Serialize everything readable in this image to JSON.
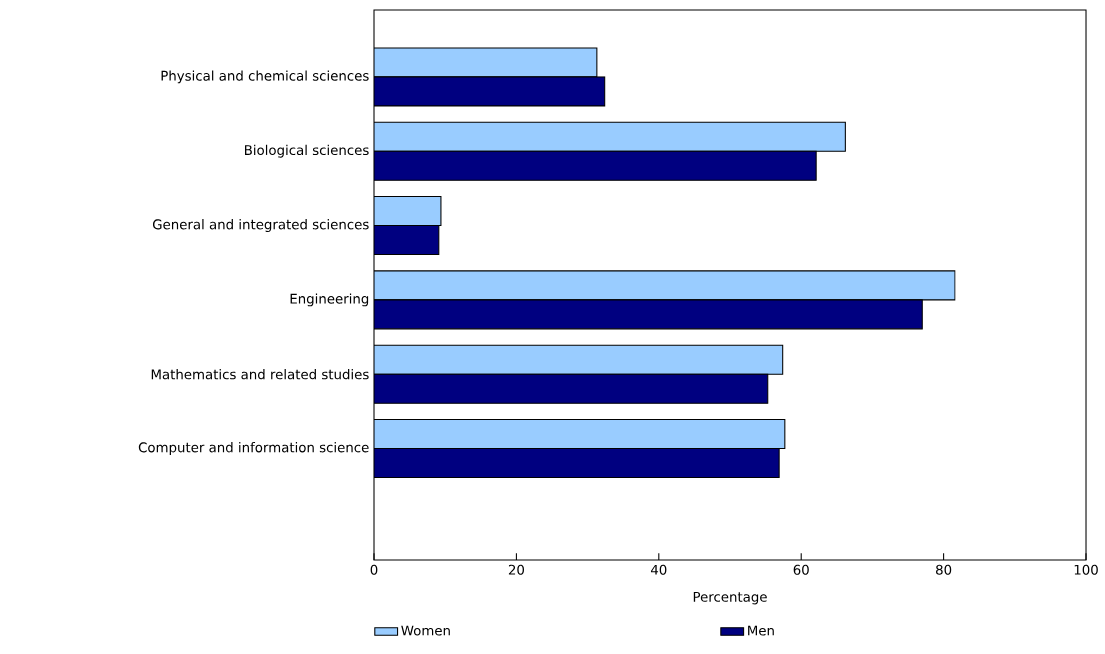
{
  "chart_data": {
    "type": "bar",
    "orientation": "horizontal",
    "xlabel": "Percentage",
    "categories": [
      "Physical and chemical sciences",
      "Biological sciences",
      "General and integrated sciences",
      "Engineering",
      "Mathematics and related studies",
      "Computer and information science"
    ],
    "series": [
      {
        "name": "Women",
        "color": "#99ccff",
        "values": [
          31.3,
          66.2,
          9.4,
          81.6,
          57.4,
          57.7
        ]
      },
      {
        "name": "Men",
        "color": "#000080",
        "values": [
          32.4,
          62.1,
          9.1,
          77.0,
          55.3,
          56.9
        ]
      }
    ],
    "xlim": [
      0,
      100
    ],
    "xticks": [
      0,
      20,
      40,
      60,
      80,
      100
    ],
    "grid": false,
    "legend": "bottom"
  }
}
